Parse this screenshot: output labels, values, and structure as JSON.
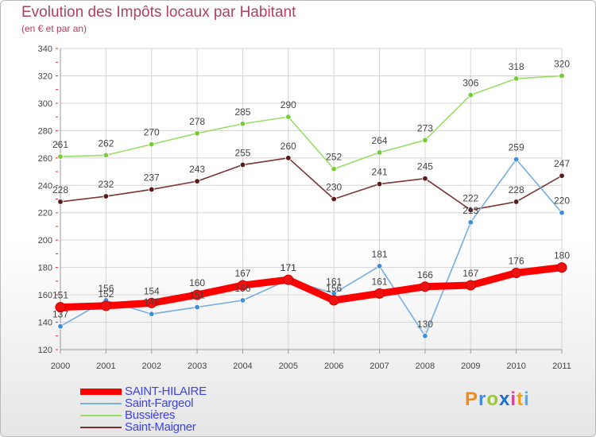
{
  "title": "Evolution des Impôts locaux par Habitant",
  "subtitle": "(en € et par an)",
  "logo": {
    "text": "Proxiti",
    "letters": [
      {
        "ch": "P",
        "color": "#f18a1e"
      },
      {
        "ch": "r",
        "color": "#3d8ee0"
      },
      {
        "ch": "o",
        "color": "#9bc730"
      },
      {
        "ch": "x",
        "color": "#1f6fd0"
      },
      {
        "ch": "i",
        "color": "#d6449b"
      },
      {
        "ch": "t",
        "color": "#f0a21e"
      },
      {
        "ch": "i",
        "color": "#49b3e6"
      }
    ]
  },
  "chart_data": {
    "type": "line",
    "title": "Evolution des Impôts locaux par Habitant",
    "subtitle": "(en € et par an)",
    "xlabel": "",
    "ylabel": "",
    "x": [
      "2000",
      "2001",
      "2002",
      "2003",
      "2004",
      "2005",
      "2006",
      "2007",
      "2008",
      "2009",
      "2010",
      "2011"
    ],
    "ylim": [
      120,
      340
    ],
    "yticks": [
      120,
      140,
      160,
      180,
      200,
      220,
      240,
      260,
      280,
      300,
      320,
      340
    ],
    "grid": true,
    "legend_position": "bottom-left",
    "series": [
      {
        "name": "SAINT-HILAIRE",
        "values": [
          151,
          152,
          154,
          160,
          167,
          171,
          156,
          161,
          166,
          167,
          176,
          180
        ],
        "color": "#ff0000",
        "marker": "#ee1111",
        "label_color": "#444444",
        "thick": true
      },
      {
        "name": "Saint-Fargeol",
        "values": [
          137,
          156,
          146,
          151,
          156,
          171,
          161,
          181,
          130,
          213,
          259,
          220
        ],
        "color": "#77aee0",
        "marker": "#3f8fd8",
        "label_color": "#444444",
        "thick": false
      },
      {
        "name": "Bussières",
        "values": [
          261,
          262,
          270,
          278,
          285,
          290,
          252,
          264,
          273,
          306,
          318,
          320
        ],
        "color": "#99dd66",
        "marker": "#77cc33",
        "label_color": "#444444",
        "thick": false
      },
      {
        "name": "Saint-Maigner",
        "values": [
          228,
          232,
          237,
          243,
          255,
          260,
          230,
          241,
          245,
          222,
          228,
          247
        ],
        "color": "#7a3434",
        "marker": "#5a1a1a",
        "label_color": "#444444",
        "thick": false
      }
    ]
  }
}
